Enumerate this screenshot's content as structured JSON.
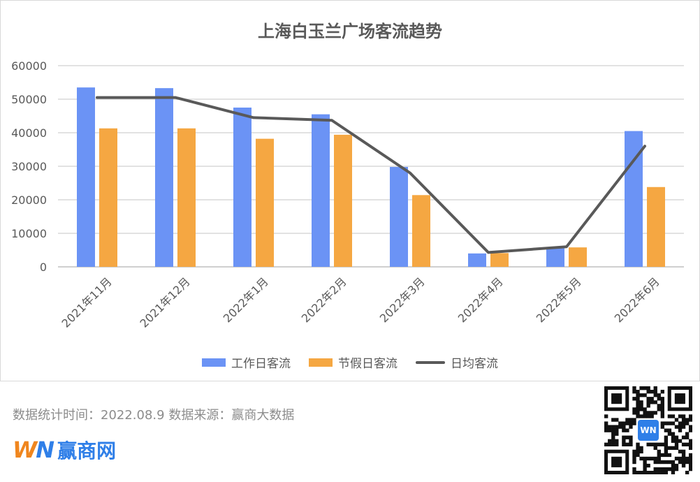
{
  "chart_data": {
    "type": "bar",
    "title": "上海白玉兰广场客流趋势",
    "categories": [
      "2021年11月",
      "2021年12月",
      "2022年1月",
      "2022年2月",
      "2022年3月",
      "2022年4月",
      "2022年5月",
      "2022年6月"
    ],
    "series": [
      {
        "name": "工作日客流",
        "type": "bar",
        "color": "#6b93f5",
        "values": [
          53500,
          53300,
          47500,
          45500,
          29800,
          4000,
          5500,
          40500
        ]
      },
      {
        "name": "节假日客流",
        "type": "bar",
        "color": "#f5a742",
        "values": [
          41300,
          41300,
          38200,
          39400,
          21400,
          4100,
          5800,
          23800
        ]
      },
      {
        "name": "日均客流",
        "type": "line",
        "color": "#595959",
        "values": [
          50500,
          50500,
          44500,
          43700,
          28000,
          4300,
          6000,
          36000
        ]
      }
    ],
    "ylim": [
      0,
      60000
    ],
    "yticks": [
      "0",
      "10000",
      "20000",
      "30000",
      "40000",
      "50000",
      "60000"
    ],
    "grid": true,
    "legend_position": "bottom"
  },
  "footer": {
    "source_text": "数据统计时间：2022.08.9 数据来源：赢商大数据"
  },
  "logo": {
    "mark_w": "W",
    "mark_n": "N",
    "name": "赢商网"
  },
  "qr": {
    "center_label": "WN"
  }
}
